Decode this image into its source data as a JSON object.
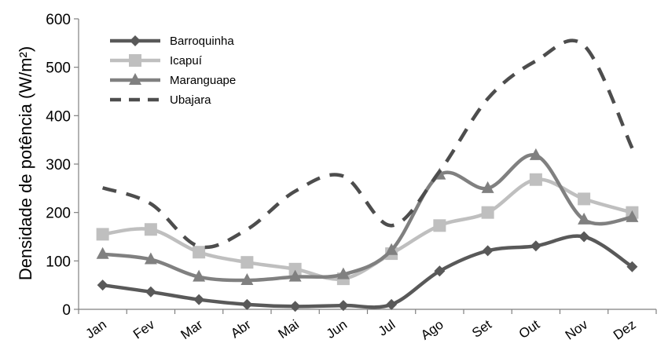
{
  "chart_data": {
    "type": "line",
    "title": "",
    "xlabel": "",
    "ylabel": "Densidade de potência (W/m²)",
    "ylim": [
      0,
      600
    ],
    "yticks": [
      0,
      100,
      200,
      300,
      400,
      500,
      600
    ],
    "grid": false,
    "legend_position": "top-left",
    "categories": [
      "Jan",
      "Fev",
      "Mar",
      "Abr",
      "Mai",
      "Jun",
      "Jul",
      "Ago",
      "Set",
      "Out",
      "Nov",
      "Dez"
    ],
    "series": [
      {
        "name": "Barroquinha",
        "marker": "diamond",
        "line": "solid",
        "color": "#595959",
        "values": [
          50,
          36,
          20,
          10,
          6,
          8,
          10,
          79,
          121,
          131,
          150,
          88
        ]
      },
      {
        "name": "Icapuí",
        "marker": "square",
        "line": "solid",
        "color": "#bfbfbf",
        "values": [
          155,
          165,
          118,
          97,
          83,
          63,
          115,
          173,
          200,
          268,
          228,
          200
        ]
      },
      {
        "name": "Maranguape",
        "marker": "triangle",
        "line": "solid",
        "color": "#808080",
        "values": [
          114,
          103,
          67,
          60,
          67,
          72,
          122,
          278,
          250,
          318,
          185,
          190
        ]
      },
      {
        "name": "Ubajara",
        "marker": "none",
        "line": "dashed",
        "color": "#4d4d4d",
        "values": [
          251,
          218,
          130,
          165,
          244,
          275,
          173,
          285,
          435,
          513,
          545,
          333
        ]
      }
    ]
  }
}
